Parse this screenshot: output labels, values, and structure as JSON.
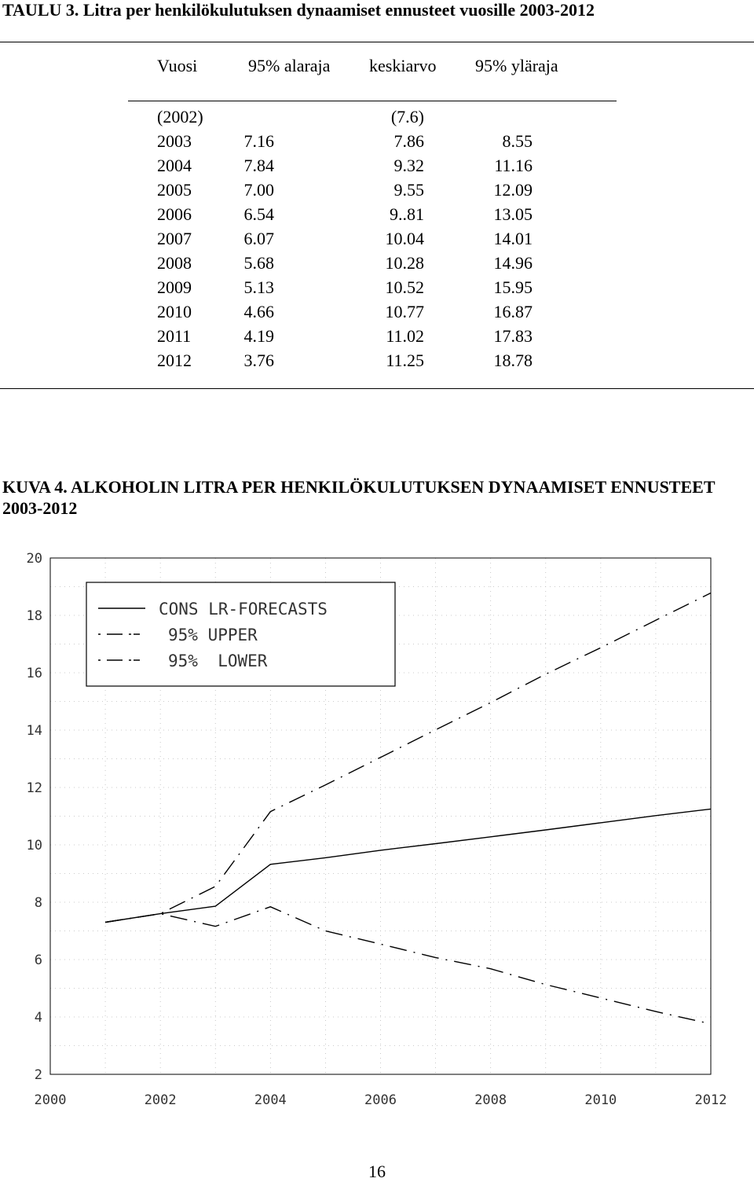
{
  "table": {
    "title": "TAULU 3. Litra per henkilökulutuksen dynaamiset ennusteet vuosille 2003-2012",
    "headers": [
      "Vuosi",
      "95% alaraja",
      "keskiarvo",
      "95% yläraja"
    ],
    "rows": [
      [
        "(2002)",
        "",
        "(7.6)",
        ""
      ],
      [
        "2003",
        "7.16",
        "7.86",
        "8.55"
      ],
      [
        "2004",
        "7.84",
        "9.32",
        "11.16"
      ],
      [
        "2005",
        "7.00",
        "9.55",
        "12.09"
      ],
      [
        "2006",
        "6.54",
        "9..81",
        "13.05"
      ],
      [
        "2007",
        "6.07",
        "10.04",
        "14.01"
      ],
      [
        "2008",
        "5.68",
        "10.28",
        "14.96"
      ],
      [
        "2009",
        "5.13",
        "10.52",
        "15.95"
      ],
      [
        "2010",
        "4.66",
        "10.77",
        "16.87"
      ],
      [
        "2011",
        "4.19",
        "11.02",
        "17.83"
      ],
      [
        "2012",
        "3.76",
        "11.25",
        "18.78"
      ]
    ]
  },
  "figure": {
    "caption": "KUVA 4. ALKOHOLIN LITRA PER HENKILÖKULUTUKSEN DYNAAMISET ENNUSTEET 2003-2012"
  },
  "chart_data": {
    "type": "line",
    "xlim": [
      2000,
      2012
    ],
    "ylim": [
      2,
      20
    ],
    "xticks": [
      "2000",
      "2002",
      "2004",
      "2006",
      "2008",
      "2010",
      "2012"
    ],
    "yticks": [
      "20",
      "18",
      "16",
      "14",
      "12",
      "10",
      "8",
      "6",
      "4",
      "2"
    ],
    "grid": true,
    "legend_position": "top-left",
    "series": [
      {
        "name": "CONS LR-FORECASTS",
        "style": "solid",
        "x": [
          2001,
          2002,
          2003,
          2004,
          2005,
          2006,
          2007,
          2008,
          2009,
          2010,
          2011,
          2012
        ],
        "y": [
          7.3,
          7.6,
          7.86,
          9.32,
          9.55,
          9.81,
          10.04,
          10.28,
          10.52,
          10.77,
          11.02,
          11.25
        ]
      },
      {
        "name": "95% UPPER",
        "style": "dashdot",
        "x": [
          2001,
          2002,
          2003,
          2004,
          2005,
          2006,
          2007,
          2008,
          2009,
          2010,
          2011,
          2012
        ],
        "y": [
          7.3,
          7.6,
          8.55,
          11.16,
          12.09,
          13.05,
          14.01,
          14.96,
          15.95,
          16.87,
          17.83,
          18.78
        ]
      },
      {
        "name": "95%  LOWER",
        "style": "dashdot",
        "x": [
          2001,
          2002,
          2003,
          2004,
          2005,
          2006,
          2007,
          2008,
          2009,
          2010,
          2011,
          2012
        ],
        "y": [
          7.3,
          7.6,
          7.16,
          7.84,
          7.0,
          6.54,
          6.07,
          5.68,
          5.13,
          4.66,
          4.19,
          3.76
        ]
      }
    ]
  },
  "page": {
    "number": "16"
  }
}
